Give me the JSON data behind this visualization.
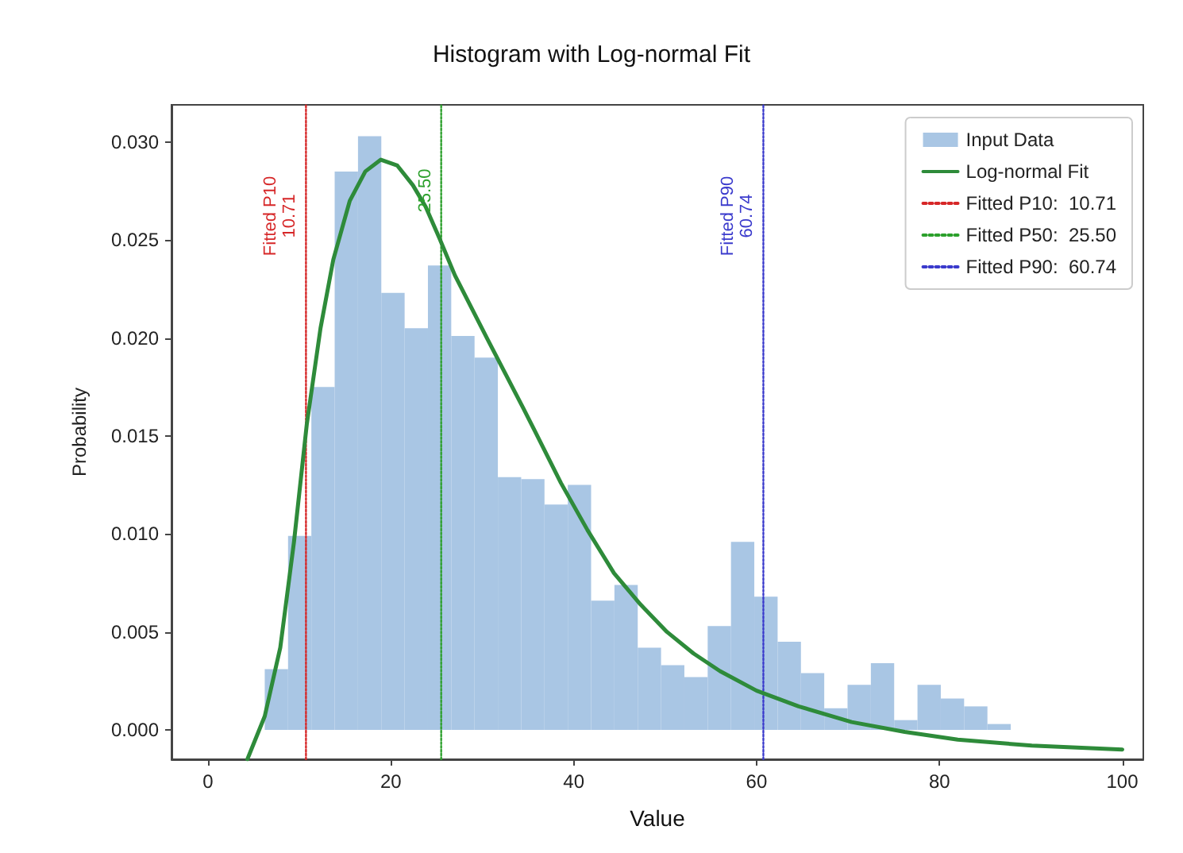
{
  "chart_data": {
    "type": "histogram",
    "title": "Histogram with Log-normal Fit",
    "xlabel": "Value",
    "ylabel": "Probability",
    "series": [
      {
        "name": "Input Data",
        "color": "#a9c6e4",
        "bins": [
          6.2,
          8.75,
          11.3,
          13.85,
          16.4,
          18.95,
          21.5,
          24.05,
          26.6,
          29.15,
          31.7,
          34.25,
          36.8,
          39.35,
          41.9,
          44.45,
          47,
          49.55,
          52.1,
          54.65,
          57.2,
          59.75,
          62.3,
          64.85,
          67.4,
          69.95,
          72.5,
          75.05,
          77.6,
          80.15,
          82.7,
          85.25,
          87.8
        ],
        "values": [
          0.0031,
          0.0099,
          0.0175,
          0.0285,
          0.0303,
          0.0223,
          0.0205,
          0.0237,
          0.0201,
          0.019,
          0.0129,
          0.0128,
          0.0115,
          0.0125,
          0.0066,
          0.0074,
          0.0042,
          0.0033,
          0.0027,
          0.0053,
          0.0096,
          0.0068,
          0.0045,
          0.0029,
          0.0011,
          0.0023,
          0.0034,
          0.0005,
          0.0023,
          0.0016,
          0.0012,
          0.0003
        ]
      },
      {
        "type": "line",
        "name": "Log-normal Fit",
        "color": "#2e8b3a",
        "x": [
          4.3,
          6.2,
          7.9,
          9.4,
          10.8,
          12.3,
          13.7,
          15.5,
          17.2,
          18.9,
          20.7,
          22.4,
          23.8,
          25.3,
          27,
          30.5,
          34.5,
          35.7,
          38.6,
          41.5,
          44.4,
          47.3,
          50.2,
          53.1,
          56,
          60,
          64.6,
          70.4,
          76.2,
          82,
          90.1,
          100
        ],
        "values": [
          -0.0015,
          0.0007,
          0.0042,
          0.0096,
          0.0156,
          0.0205,
          0.024,
          0.027,
          0.0285,
          0.0291,
          0.0288,
          0.0278,
          0.0267,
          0.0251,
          0.0232,
          0.02,
          0.0164,
          0.0153,
          0.0126,
          0.0102,
          0.008,
          0.0064,
          0.005,
          0.0039,
          0.003,
          0.002,
          0.0012,
          0.0004,
          -0.0001,
          -0.0005,
          -0.0008,
          -0.001
        ]
      },
      {
        "type": "line",
        "name": "Fitted P10:  10.71",
        "color": "#d62728",
        "line_style": "dotted",
        "x": [
          10.71,
          10.71
        ],
        "values": [
          -0.0015,
          0.0319
        ]
      },
      {
        "type": "line",
        "name": "Fitted P50:  25.50",
        "color": "#2ca02c",
        "line_style": "dotted",
        "x": [
          25.5,
          25.5
        ],
        "values": [
          -0.0015,
          0.0319
        ]
      },
      {
        "type": "line",
        "name": "Fitted P90:  60.74",
        "color": "#3a3acc",
        "line_style": "dotted",
        "x": [
          60.74,
          60.74
        ],
        "values": [
          -0.0015,
          0.0319
        ]
      }
    ],
    "annotations": [
      "Fitted P10\n10.71",
      "25.50",
      "Fitted P90\n60.74"
    ],
    "xlim": [
      -4,
      102.3
    ],
    "xticks": [
      0,
      20,
      40,
      60,
      80,
      100
    ],
    "ylim": [
      -0.0015,
      0.0319
    ],
    "yticks": [
      {
        "value": 0,
        "label": "0.000"
      },
      {
        "value": 0.005,
        "label": "0.005"
      },
      {
        "value": 0.01,
        "label": "0.010"
      },
      {
        "value": 0.015,
        "label": "0.015"
      },
      {
        "value": 0.02,
        "label": "0.020"
      },
      {
        "value": 0.025,
        "label": "0.025"
      },
      {
        "value": 0.03,
        "label": "0.030"
      }
    ],
    "legend": "top right",
    "grid": false
  }
}
